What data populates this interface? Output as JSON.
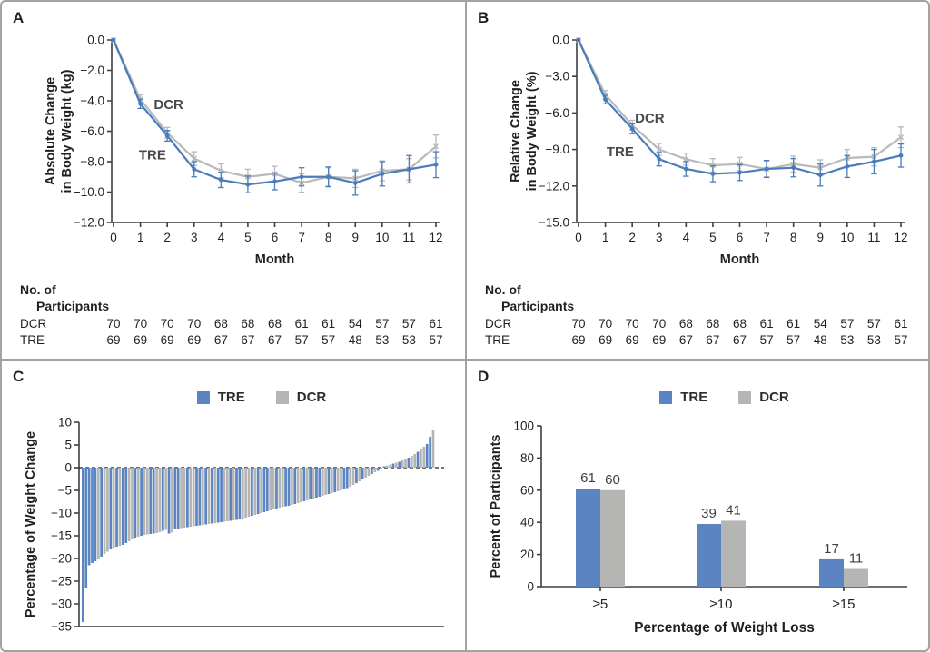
{
  "figure": {
    "colors": {
      "tre_line": "#4a7cbd",
      "tre_bar": "#5b85c2",
      "dcr_line": "#b7b9ba",
      "dcr_bar": "#b5b6b4",
      "axis": "#3f3f3f",
      "text": "#231f20",
      "zero_line": "#231f20"
    },
    "legend": {
      "tre_label": "TRE",
      "dcr_label": "DCR"
    }
  },
  "panels": {
    "a_label": "A",
    "b_label": "B",
    "c_label": "C",
    "d_label": "D"
  },
  "participants": {
    "heading_line1": "No. of",
    "heading_line2": "Participants",
    "rows": [
      {
        "label": "DCR",
        "counts": [
          70,
          70,
          70,
          70,
          68,
          68,
          68,
          61,
          61,
          54,
          57,
          57,
          61
        ]
      },
      {
        "label": "TRE",
        "counts": [
          69,
          69,
          69,
          69,
          67,
          67,
          67,
          57,
          57,
          48,
          53,
          53,
          57
        ]
      }
    ]
  },
  "chart_data": [
    {
      "panel": "A",
      "type": "line",
      "xlabel": "Month",
      "ylabel_lines": [
        "Absolute Change",
        "in Body Weight (kg)"
      ],
      "x": [
        0,
        1,
        2,
        3,
        4,
        5,
        6,
        7,
        8,
        9,
        10,
        11,
        12
      ],
      "xtick_labels": [
        "0",
        "1",
        "2",
        "3",
        "4",
        "5",
        "6",
        "7",
        "8",
        "9",
        "10",
        "11",
        "12"
      ],
      "yticks": [
        0,
        -2,
        -4,
        -6,
        -8,
        -10,
        -12
      ],
      "ytick_labels": [
        "0.0",
        "−2.0",
        "−4.0",
        "−6.0",
        "−8.0",
        "−10.0",
        "−12.0"
      ],
      "ylim": [
        -12,
        0
      ],
      "series": [
        {
          "name": "DCR",
          "color_key": "dcr_line",
          "marker": "cross",
          "values": [
            0,
            -3.9,
            -6.1,
            -7.8,
            -8.6,
            -9.0,
            -8.8,
            -9.4,
            -9.0,
            -9.1,
            -8.6,
            -8.5,
            -7.0
          ],
          "err": [
            0,
            0.3,
            0.35,
            0.45,
            0.45,
            0.5,
            0.5,
            0.6,
            0.6,
            0.6,
            0.65,
            0.7,
            0.75
          ],
          "label_at": {
            "x": 2.05,
            "y": -4.55
          }
        },
        {
          "name": "TRE",
          "color_key": "tre_line",
          "marker": "dot",
          "values": [
            0,
            -4.2,
            -6.3,
            -8.5,
            -9.2,
            -9.5,
            -9.3,
            -9.0,
            -9.0,
            -9.4,
            -8.8,
            -8.5,
            -8.2
          ],
          "err": [
            0,
            0.3,
            0.35,
            0.5,
            0.5,
            0.55,
            0.55,
            0.6,
            0.65,
            0.8,
            0.8,
            0.9,
            0.85
          ],
          "label_at": {
            "x": 1.45,
            "y": -7.85
          }
        }
      ]
    },
    {
      "panel": "B",
      "type": "line",
      "xlabel": "Month",
      "ylabel_lines": [
        "Relative Change",
        "in Body Weight (%)"
      ],
      "x": [
        0,
        1,
        2,
        3,
        4,
        5,
        6,
        7,
        8,
        9,
        10,
        11,
        12
      ],
      "xtick_labels": [
        "0",
        "1",
        "2",
        "3",
        "4",
        "5",
        "6",
        "7",
        "8",
        "9",
        "10",
        "11",
        "12"
      ],
      "yticks": [
        0,
        -3,
        -6,
        -9,
        -12,
        -15
      ],
      "ytick_labels": [
        "0.0",
        "−3.0",
        "−6.0",
        "−9.0",
        "−12.0",
        "−15.0"
      ],
      "ylim": [
        -15,
        0
      ],
      "series": [
        {
          "name": "DCR",
          "color_key": "dcr_line",
          "marker": "cross",
          "values": [
            0,
            -4.5,
            -7.0,
            -9.0,
            -9.8,
            -10.3,
            -10.2,
            -10.6,
            -10.2,
            -10.5,
            -9.7,
            -9.6,
            -8.0
          ],
          "err": [
            0,
            0.35,
            0.4,
            0.5,
            0.5,
            0.55,
            0.55,
            0.65,
            0.65,
            0.65,
            0.7,
            0.75,
            0.85
          ],
          "label_at": {
            "x": 2.65,
            "y": -6.8
          }
        },
        {
          "name": "TRE",
          "color_key": "tre_line",
          "marker": "dot",
          "values": [
            0,
            -4.9,
            -7.3,
            -9.8,
            -10.6,
            -11.0,
            -10.9,
            -10.6,
            -10.5,
            -11.1,
            -10.4,
            -10.0,
            -9.5
          ],
          "err": [
            0,
            0.35,
            0.4,
            0.55,
            0.6,
            0.65,
            0.65,
            0.7,
            0.75,
            0.9,
            0.9,
            1.0,
            0.95
          ],
          "label_at": {
            "x": 1.55,
            "y": -9.55
          }
        }
      ]
    },
    {
      "panel": "C",
      "type": "waterfall",
      "ylabel": "Percentage of Weight Change",
      "yticks": [
        10,
        5,
        0,
        -5,
        -10,
        -15,
        -20,
        -25,
        -30,
        -35
      ],
      "ytick_labels": [
        "10",
        "5",
        "0",
        "−5",
        "−10",
        "−15",
        "−20",
        "−25",
        "−30",
        "−35"
      ],
      "ylim": [
        -35,
        10
      ],
      "legend": [
        "TRE",
        "DCR"
      ],
      "values": [
        -34,
        -26.5,
        -21.5,
        -21,
        -20.6,
        -20.2,
        -19.6,
        -19,
        -18.5,
        -18,
        -17.6,
        -17.4,
        -17.2,
        -17,
        -16.6,
        -16.2,
        -15.8,
        -15.5,
        -15.2,
        -15,
        -14.8,
        -14.7,
        -14.6,
        -14.5,
        -14.4,
        -14.2,
        -13.9,
        -13.7,
        -14.5,
        -14.3,
        -13.5,
        -13.4,
        -13.3,
        -13.2,
        -13.1,
        -13,
        -12.9,
        -12.8,
        -12.7,
        -12.6,
        -12.5,
        -12.4,
        -12.3,
        -12.2,
        -12.1,
        -12,
        -11.9,
        -11.8,
        -11.7,
        -11.6,
        -11.5,
        -11.4,
        -11.2,
        -11,
        -10.8,
        -10.6,
        -10.4,
        -10.2,
        -10,
        -9.8,
        -9.6,
        -9.4,
        -9.2,
        -9,
        -8.8,
        -8.6,
        -8.5,
        -8.4,
        -8.2,
        -8,
        -7.8,
        -7.6,
        -7.4,
        -7.2,
        -7,
        -6.8,
        -6.6,
        -6.4,
        -6.2,
        -6,
        -5.8,
        -5.6,
        -5.4,
        -5.2,
        -5,
        -4.8,
        -4.5,
        -4.2,
        -3.8,
        -3.4,
        -3,
        -2.6,
        -2.2,
        -1.8,
        -1.4,
        -1,
        -0.7,
        -0.4,
        0.3,
        0.5,
        0.7,
        0.9,
        1.1,
        1.3,
        1.6,
        1.9,
        2.2,
        2.6,
        3,
        3.5,
        4,
        4.6,
        5.2,
        6.8,
        8.2
      ],
      "groups": [
        "TTTTTDTDDT",
        "DTDTTDDTDT",
        "DDTTDDTDTD",
        "TTDDTDDTTD",
        "TDTDTTDDTD",
        "TTDDDTDTDT",
        "TDDTDDTTDT",
        "DDTDTDTTDD",
        "TDTDDTTDDT",
        "DTDDTDTD",
        "TDDTDTDDTDDTDDTTD"
      ]
    },
    {
      "panel": "D",
      "type": "grouped_bar",
      "ylabel": "Percent of Participants",
      "xlabel": "Percentage of Weight Loss",
      "categories": [
        "≥5",
        "≥10",
        "≥15"
      ],
      "yticks": [
        0,
        20,
        40,
        60,
        80,
        100
      ],
      "ytick_labels": [
        "0",
        "20",
        "40",
        "60",
        "80",
        "100"
      ],
      "ylim": [
        0,
        100
      ],
      "legend": [
        "TRE",
        "DCR"
      ],
      "series": [
        {
          "name": "TRE",
          "color_key": "tre_bar",
          "values": [
            61,
            39,
            17
          ]
        },
        {
          "name": "DCR",
          "color_key": "dcr_bar",
          "values": [
            60,
            41,
            11
          ]
        }
      ]
    }
  ]
}
